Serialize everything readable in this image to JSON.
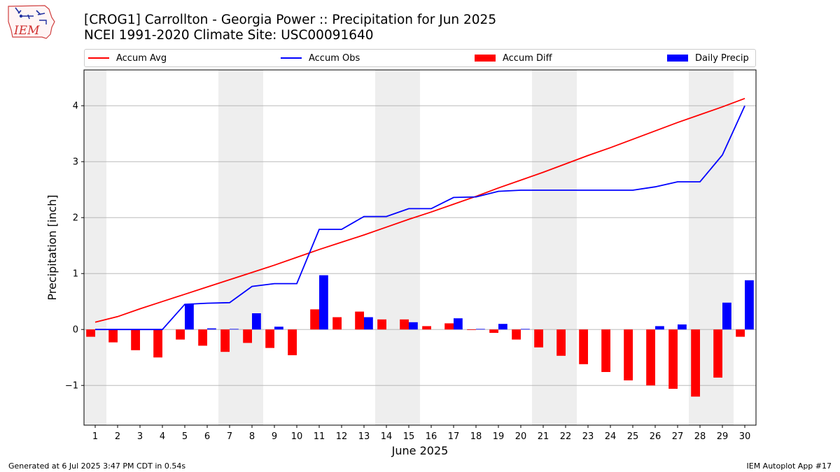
{
  "logo": {
    "text": "IEM",
    "icon": "iowa-state-logo-icon"
  },
  "header": {
    "title_line1": "[CROG1] Carrollton - Georgia Power :: Precipitation for Jun 2025",
    "title_line2": "NCEI 1991-2020 Climate Site: USC00091640"
  },
  "legend": {
    "accum_avg": "Accum Avg",
    "accum_obs": "Accum Obs",
    "accum_diff": "Accum Diff",
    "daily_precip": "Daily Precip"
  },
  "colors": {
    "avg": "#ff0000",
    "obs": "#0000ff",
    "diff": "#ff0000",
    "daily": "#0000ff",
    "weekend_shade": "#eeeeee",
    "grid": "#b0b0b0"
  },
  "footer": {
    "left": "Generated at 6 Jul 2025 3:47 PM CDT in 0.54s",
    "right": "IEM Autoplot App #17"
  },
  "chart_data": {
    "type": "bar",
    "xlabel": "June 2025",
    "ylabel": "Precipitation [inch]",
    "xlim": [
      0.5,
      30.5
    ],
    "ylim": [
      -1.71,
      4.64
    ],
    "x": [
      1,
      2,
      3,
      4,
      5,
      6,
      7,
      8,
      9,
      10,
      11,
      12,
      13,
      14,
      15,
      16,
      17,
      18,
      19,
      20,
      21,
      22,
      23,
      24,
      25,
      26,
      27,
      28,
      29,
      30
    ],
    "yticks": [
      -1,
      0,
      1,
      2,
      3,
      4
    ],
    "ytick_labels": [
      "−1",
      "0",
      "1",
      "2",
      "3",
      "4"
    ],
    "shaded_day_ranges": [
      [
        0.5,
        1.5
      ],
      [
        6.5,
        8.5
      ],
      [
        13.5,
        15.5
      ],
      [
        20.5,
        22.5
      ],
      [
        27.5,
        29.5
      ]
    ],
    "grid": "y",
    "legend_position": "top",
    "series": [
      {
        "name": "Accum Avg",
        "type": "line",
        "values": [
          0.13,
          0.23,
          0.37,
          0.5,
          0.63,
          0.76,
          0.89,
          1.02,
          1.15,
          1.29,
          1.43,
          1.56,
          1.69,
          1.83,
          1.97,
          2.1,
          2.24,
          2.38,
          2.53,
          2.67,
          2.81,
          2.96,
          3.11,
          3.25,
          3.4,
          3.55,
          3.7,
          3.84,
          3.98,
          4.13
        ]
      },
      {
        "name": "Accum Obs",
        "type": "line",
        "values": [
          0.0,
          0.0,
          0.0,
          0.0,
          0.45,
          0.47,
          0.48,
          0.77,
          0.82,
          0.82,
          1.79,
          1.79,
          2.02,
          2.02,
          2.16,
          2.16,
          2.36,
          2.37,
          2.47,
          2.49,
          2.49,
          2.49,
          2.49,
          2.49,
          2.49,
          2.55,
          2.64,
          2.64,
          3.12,
          4.0
        ]
      },
      {
        "name": "Accum Diff",
        "type": "bar",
        "values": [
          -0.13,
          -0.23,
          -0.37,
          -0.5,
          -0.18,
          -0.29,
          -0.4,
          -0.24,
          -0.33,
          -0.46,
          0.36,
          0.22,
          0.32,
          0.18,
          0.18,
          0.06,
          0.11,
          -0.01,
          -0.06,
          -0.18,
          -0.32,
          -0.47,
          -0.62,
          -0.76,
          -0.91,
          -1.0,
          -1.06,
          -1.2,
          -0.86,
          -0.13
        ]
      },
      {
        "name": "Daily Precip",
        "type": "bar",
        "values": [
          0.0,
          0.0,
          0.0,
          0.0,
          0.45,
          0.02,
          0.01,
          0.29,
          0.05,
          0.0,
          0.97,
          0.0,
          0.22,
          0.0,
          0.13,
          0.0,
          0.2,
          0.01,
          0.1,
          0.01,
          0.0,
          0.0,
          0.0,
          0.0,
          0.0,
          0.06,
          0.09,
          0.0,
          0.48,
          0.88
        ]
      }
    ]
  }
}
